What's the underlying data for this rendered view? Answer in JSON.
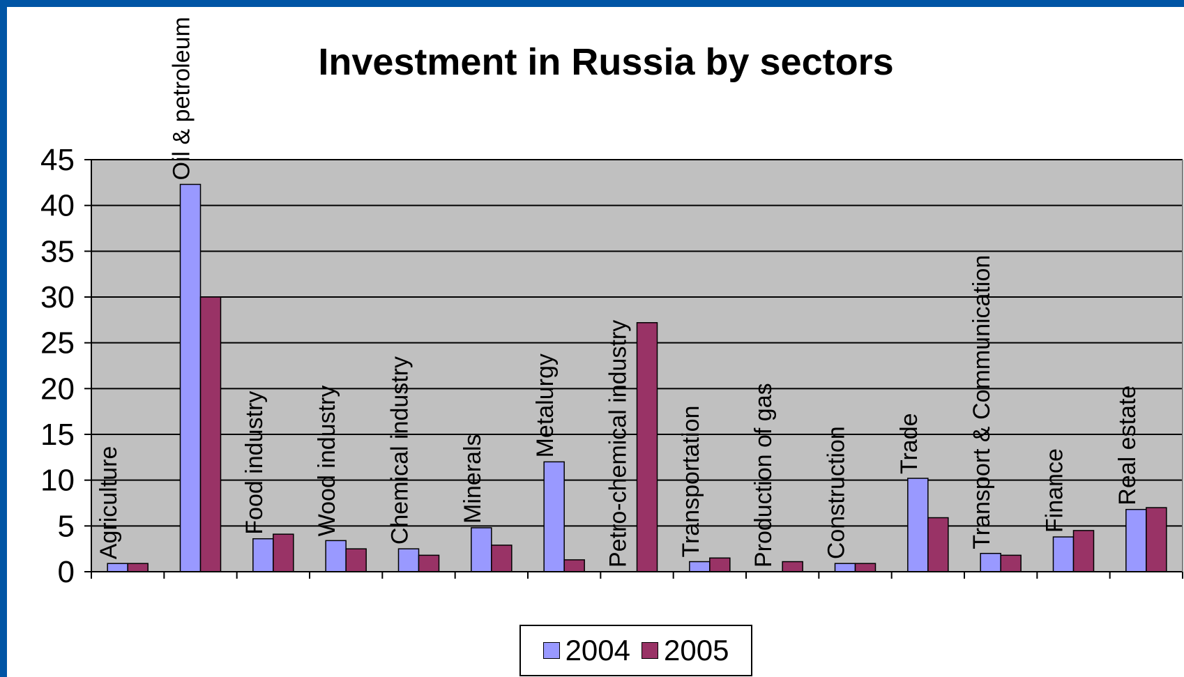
{
  "chart_data": {
    "type": "bar",
    "title": "Investment in Russia by sectors",
    "categories": [
      "Agriculture",
      "Oil  &  petroleum",
      "Food industry",
      "Wood industry",
      "Chemical industry",
      "Minerals",
      "Metalurgy",
      "Petro-chemical industry",
      "Transportation",
      "Production of gas",
      "Construction",
      "Trade",
      "Transport  &  Communication",
      "Finance",
      "Real estate"
    ],
    "series": [
      {
        "name": "2004",
        "color": "#9999ff",
        "values": [
          0.9,
          42.3,
          3.6,
          3.4,
          2.5,
          4.8,
          12.0,
          0,
          1.1,
          0,
          0.9,
          10.2,
          2.0,
          3.8,
          6.8
        ]
      },
      {
        "name": "2005",
        "color": "#993366",
        "values": [
          0.9,
          30.0,
          4.1,
          2.5,
          1.8,
          2.9,
          1.3,
          27.2,
          1.5,
          1.1,
          0.9,
          5.9,
          1.8,
          4.5,
          7.0
        ]
      }
    ],
    "ylim": [
      0,
      45
    ],
    "yticks": [
      0,
      5,
      10,
      15,
      20,
      25,
      30,
      35,
      40,
      45
    ],
    "xlabel": "",
    "ylabel": "",
    "grid": true,
    "legend_position": "bottom"
  }
}
